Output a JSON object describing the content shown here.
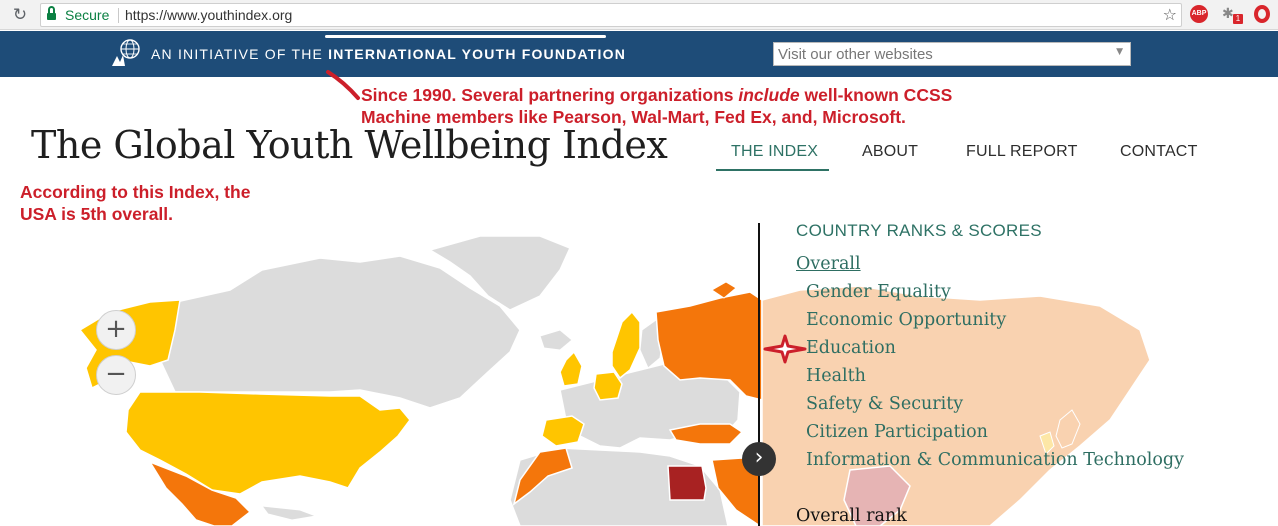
{
  "browser": {
    "secure_label": "Secure",
    "url": "https://www.youthindex.org",
    "extensions": {
      "abp_label": "ABP",
      "badge_count": "1"
    }
  },
  "topbar": {
    "initiative_prefix": "AN INITIATIVE OF THE ",
    "initiative_org": "INTERNATIONAL YOUTH FOUNDATION",
    "site_select_value": "Visit our other websites"
  },
  "annotations": {
    "note1_line1_a": "Since 1990. Several partnering organizations ",
    "note1_line1_em": "include",
    "note1_line1_b": " well-known CCSS",
    "note1_line2": "Machine members like Pearson, Wal-Mart, Fed Ex, and, Microsoft.",
    "note2_line1": "According to this Index, the",
    "note2_line2": "USA is 5th overall."
  },
  "header": {
    "title": "The Global Youth Wellbeing Index",
    "nav": [
      {
        "label": "THE INDEX",
        "active": true
      },
      {
        "label": "ABOUT",
        "active": false
      },
      {
        "label": "FULL REPORT",
        "active": false
      },
      {
        "label": "CONTACT",
        "active": false
      }
    ]
  },
  "map": {
    "zoom_in": "+",
    "zoom_out": "−",
    "next_arrow": "›",
    "colors": {
      "ocean": "#ffffff",
      "land_nodata": "#dcdcdc",
      "rank_top": "#ffc500",
      "rank_mid": "#f4760b",
      "rank_low": "#a82222",
      "rank_asia": "#f9d2b0"
    }
  },
  "panel": {
    "heading": "COUNTRY RANKS & SCORES",
    "items": [
      "Overall",
      "Gender Equality",
      "Economic Opportunity",
      "Education",
      "Health",
      "Safety & Security",
      "Citizen Participation",
      "Information & Communication Technology"
    ],
    "bottom_label": "Overall rank"
  }
}
